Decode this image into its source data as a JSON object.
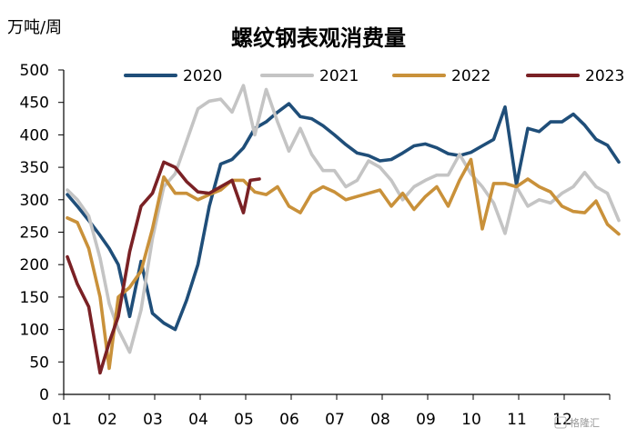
{
  "chart_data": {
    "type": "line",
    "title": "螺纹钢表观消费量",
    "unit_label": "万吨/周",
    "ylim": [
      0,
      500
    ],
    "yticks": [
      "0",
      "50",
      "100",
      "150",
      "200",
      "250",
      "300",
      "350",
      "400",
      "450",
      "500"
    ],
    "x_ticks": [
      "01",
      "02",
      "03",
      "04",
      "05",
      "06",
      "07",
      "08",
      "09",
      "10",
      "11",
      "12"
    ],
    "x_domain": [
      0,
      12
    ],
    "legend_position": "top",
    "grid": false,
    "series": [
      {
        "name": "2020",
        "color": "#1f4e79",
        "x": [
          0.08,
          0.3,
          0.55,
          0.8,
          1.0,
          1.2,
          1.45,
          1.7,
          1.95,
          2.2,
          2.45,
          2.7,
          2.95,
          3.2,
          3.45,
          3.7,
          3.95,
          4.2,
          4.45,
          4.7,
          4.95,
          5.2,
          5.45,
          5.7,
          5.95,
          6.2,
          6.45,
          6.7,
          6.95,
          7.2,
          7.45,
          7.7,
          7.95,
          8.2,
          8.45,
          8.7,
          8.95,
          9.2,
          9.45,
          9.7,
          9.95,
          10.2,
          10.45,
          10.7,
          10.95,
          11.2,
          11.45,
          11.7,
          11.95,
          12.2
        ],
        "values": [
          308,
          290,
          268,
          245,
          225,
          200,
          120,
          205,
          125,
          110,
          100,
          145,
          200,
          290,
          355,
          362,
          380,
          410,
          420,
          435,
          448,
          428,
          425,
          414,
          400,
          385,
          372,
          368,
          360,
          362,
          372,
          383,
          386,
          380,
          371,
          368,
          373,
          383,
          393,
          443,
          323,
          410,
          405,
          420,
          420,
          432,
          415,
          393,
          384,
          358
        ]
      },
      {
        "name": "2021",
        "color": "#c4c4c4",
        "x": [
          0.08,
          0.3,
          0.55,
          0.8,
          1.0,
          1.2,
          1.45,
          1.7,
          1.95,
          2.2,
          2.45,
          2.7,
          2.95,
          3.2,
          3.45,
          3.7,
          3.95,
          4.2,
          4.45,
          4.7,
          4.95,
          5.2,
          5.45,
          5.7,
          5.95,
          6.2,
          6.45,
          6.7,
          6.95,
          7.2,
          7.45,
          7.7,
          7.95,
          8.2,
          8.45,
          8.7,
          8.95,
          9.2,
          9.45,
          9.7,
          9.95,
          10.2,
          10.45,
          10.7,
          10.95,
          11.2,
          11.45,
          11.7,
          11.95,
          12.2
        ],
        "values": [
          315,
          300,
          275,
          210,
          140,
          100,
          65,
          130,
          240,
          320,
          340,
          390,
          440,
          452,
          455,
          435,
          476,
          400,
          470,
          420,
          375,
          410,
          370,
          345,
          345,
          320,
          330,
          360,
          350,
          330,
          300,
          320,
          330,
          338,
          338,
          370,
          340,
          320,
          295,
          248,
          320,
          290,
          300,
          295,
          310,
          320,
          342,
          320,
          310,
          268
        ]
      },
      {
        "name": "2022",
        "color": "#c9913a",
        "x": [
          0.08,
          0.3,
          0.55,
          0.8,
          1.0,
          1.2,
          1.45,
          1.7,
          1.95,
          2.2,
          2.45,
          2.7,
          2.95,
          3.2,
          3.45,
          3.7,
          3.95,
          4.2,
          4.45,
          4.7,
          4.95,
          5.2,
          5.45,
          5.7,
          5.95,
          6.2,
          6.45,
          6.7,
          6.95,
          7.2,
          7.45,
          7.7,
          7.95,
          8.2,
          8.45,
          8.7,
          8.95,
          9.2,
          9.45,
          9.7,
          9.95,
          10.2,
          10.45,
          10.7,
          10.95,
          11.2,
          11.45,
          11.7,
          11.95,
          12.2
        ],
        "values": [
          272,
          265,
          225,
          150,
          40,
          150,
          165,
          190,
          255,
          335,
          310,
          310,
          300,
          308,
          315,
          330,
          330,
          312,
          308,
          320,
          290,
          280,
          310,
          320,
          312,
          300,
          305,
          310,
          315,
          290,
          310,
          285,
          305,
          320,
          290,
          330,
          362,
          255,
          325,
          325,
          320,
          332,
          320,
          312,
          290,
          282,
          280,
          298,
          262,
          247
        ]
      },
      {
        "name": "2023",
        "color": "#7a2125",
        "x": [
          0.08,
          0.3,
          0.55,
          0.8,
          1.0,
          1.2,
          1.45,
          1.7,
          1.95,
          2.2,
          2.45,
          2.7,
          2.95,
          3.2,
          3.45,
          3.7,
          3.95,
          4.1,
          4.3
        ],
        "values": [
          212,
          170,
          135,
          33,
          80,
          120,
          220,
          290,
          310,
          358,
          350,
          328,
          312,
          310,
          320,
          330,
          280,
          330,
          332
        ]
      }
    ]
  },
  "watermark": "格隆汇"
}
